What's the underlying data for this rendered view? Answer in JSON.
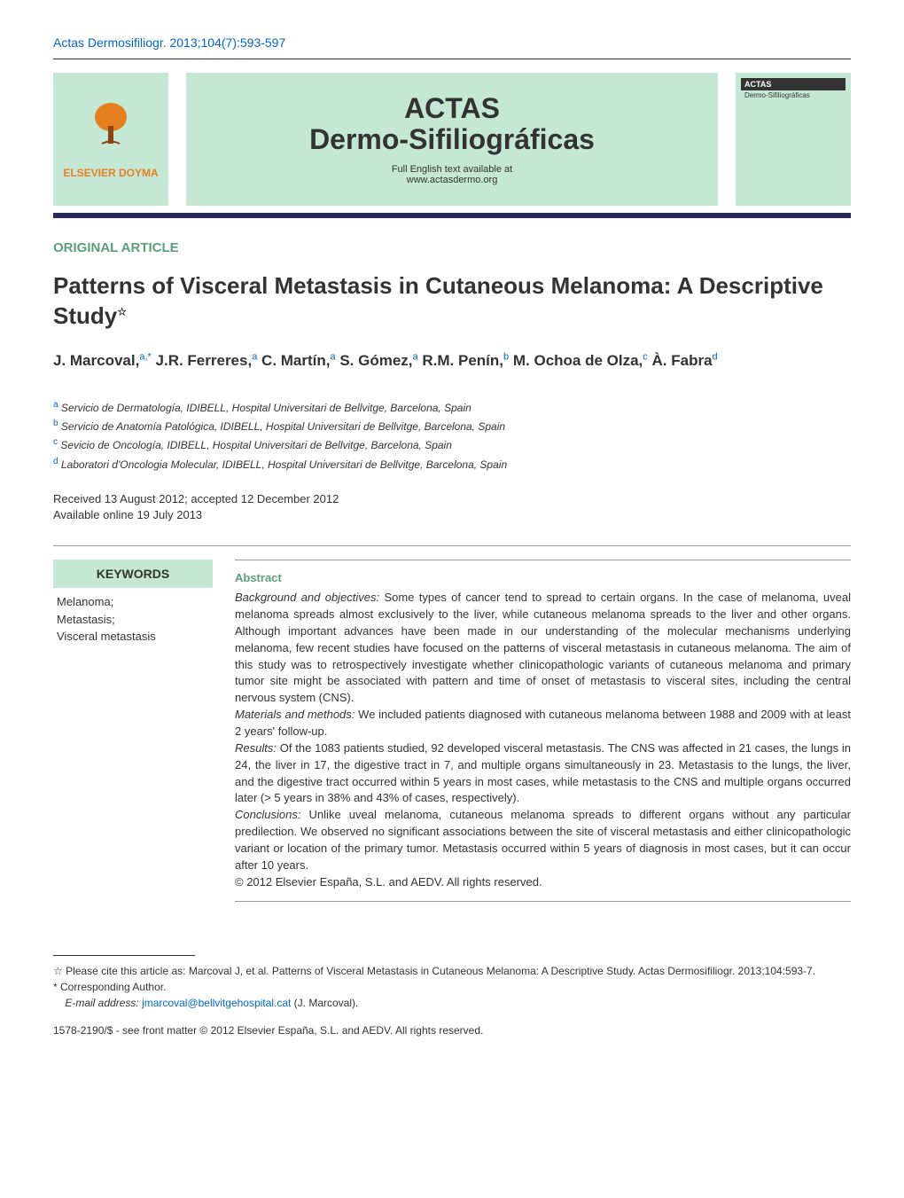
{
  "header": {
    "citation": "Actas Dermosifiliogr. 2013;104(7):593-597",
    "publisher_logo_text": "ELSEVIER DOYMA",
    "journal_name_line1": "ACTAS",
    "journal_name_line2": "Dermo-Sifiliográficas",
    "journal_subtitle_line1": "Full English text available at",
    "journal_subtitle_line2": "www.actasdermo.org",
    "cover_header": "ACTAS",
    "cover_sub": "Dermo-Sifiliográficas"
  },
  "article": {
    "type": "ORIGINAL ARTICLE",
    "title": "Patterns of Visceral Metastasis in Cutaneous Melanoma: A Descriptive Study",
    "star": "☆",
    "authors_html": "J. Marcoval,<sup>a,*</sup> J.R. Ferreres,<sup>a</sup> C. Martín,<sup>a</sup> S. Gómez,<sup>a</sup> R.M. Penín,<sup>b</sup> M. Ochoa de Olza,<sup>c</sup> À. Fabra<sup>d</sup>",
    "affiliations": [
      {
        "sup": "a",
        "text": "Servicio de Dermatología, IDIBELL, Hospital Universitari de Bellvitge, Barcelona, Spain"
      },
      {
        "sup": "b",
        "text": "Servicio de Anatomía Patológica, IDIBELL, Hospital Universitari de Bellvitge, Barcelona, Spain"
      },
      {
        "sup": "c",
        "text": "Sevicio de Oncología, IDIBELL, Hospital Universitari de Bellvitge, Barcelona, Spain"
      },
      {
        "sup": "d",
        "text": "Laboratori d'Oncologia Molecular, IDIBELL, Hospital Universitari de Bellvitge, Barcelona, Spain"
      }
    ],
    "received": "Received 13 August 2012; accepted 12 December 2012",
    "available": "Available online 19 July 2013"
  },
  "keywords": {
    "header": "KEYWORDS",
    "items": [
      "Melanoma;",
      "Metastasis;",
      "Visceral metastasis"
    ]
  },
  "abstract": {
    "header": "Abstract",
    "sections": {
      "background_label": "Background and objectives:",
      "background": "Some types of cancer tend to spread to certain organs. In the case of melanoma, uveal melanoma spreads almost exclusively to the liver, while cutaneous melanoma spreads to the liver and other organs. Although important advances have been made in our understanding of the molecular mechanisms underlying melanoma, few recent studies have focused on the patterns of visceral metastasis in cutaneous melanoma. The aim of this study was to retrospectively investigate whether clinicopathologic variants of cutaneous melanoma and primary tumor site might be associated with pattern and time of onset of metastasis to visceral sites, including the central nervous system (CNS).",
      "methods_label": "Materials and methods:",
      "methods": "We included patients diagnosed with cutaneous melanoma between 1988 and 2009 with at least 2 years' follow-up.",
      "results_label": "Results:",
      "results": "Of the 1083 patients studied, 92 developed visceral metastasis. The CNS was affected in 21 cases, the lungs in 24, the liver in 17, the digestive tract in 7, and multiple organs simultaneously in 23. Metastasis to the lungs, the liver, and the digestive tract occurred within 5 years in most cases, while metastasis to the CNS and multiple organs occurred later (> 5 years in 38% and 43% of cases, respectively).",
      "conclusions_label": "Conclusions:",
      "conclusions": "Unlike uveal melanoma, cutaneous melanoma spreads to different organs without any particular predilection. We observed no significant associations between the site of visceral metastasis and either clinicopathologic variant or location of the primary tumor. Metastasis occurred within 5 years of diagnosis in most cases, but it can occur after 10 years."
    },
    "copyright": "© 2012 Elsevier España, S.L. and AEDV. All rights reserved."
  },
  "footer": {
    "cite_note": "☆ Please cite this article as: Marcoval J, et al. Patterns of Visceral Metastasis in Cutaneous Melanoma: A Descriptive Study. Actas Dermosifiliogr. 2013;104:593-7.",
    "corresponding": "* Corresponding Author.",
    "email_label": "E-mail address:",
    "email": "jmarcoval@bellvitgehospital.cat",
    "email_suffix": "(J. Marcoval).",
    "issn": "1578-2190/$ - see front matter © 2012 Elsevier España, S.L. and AEDV. All rights reserved."
  },
  "colors": {
    "link": "#0066cc",
    "accent_bg": "#c5e8d5",
    "green_text": "#5a9e7a",
    "dark_bar": "#2a2a5a",
    "logo_orange": "#e67e22"
  }
}
